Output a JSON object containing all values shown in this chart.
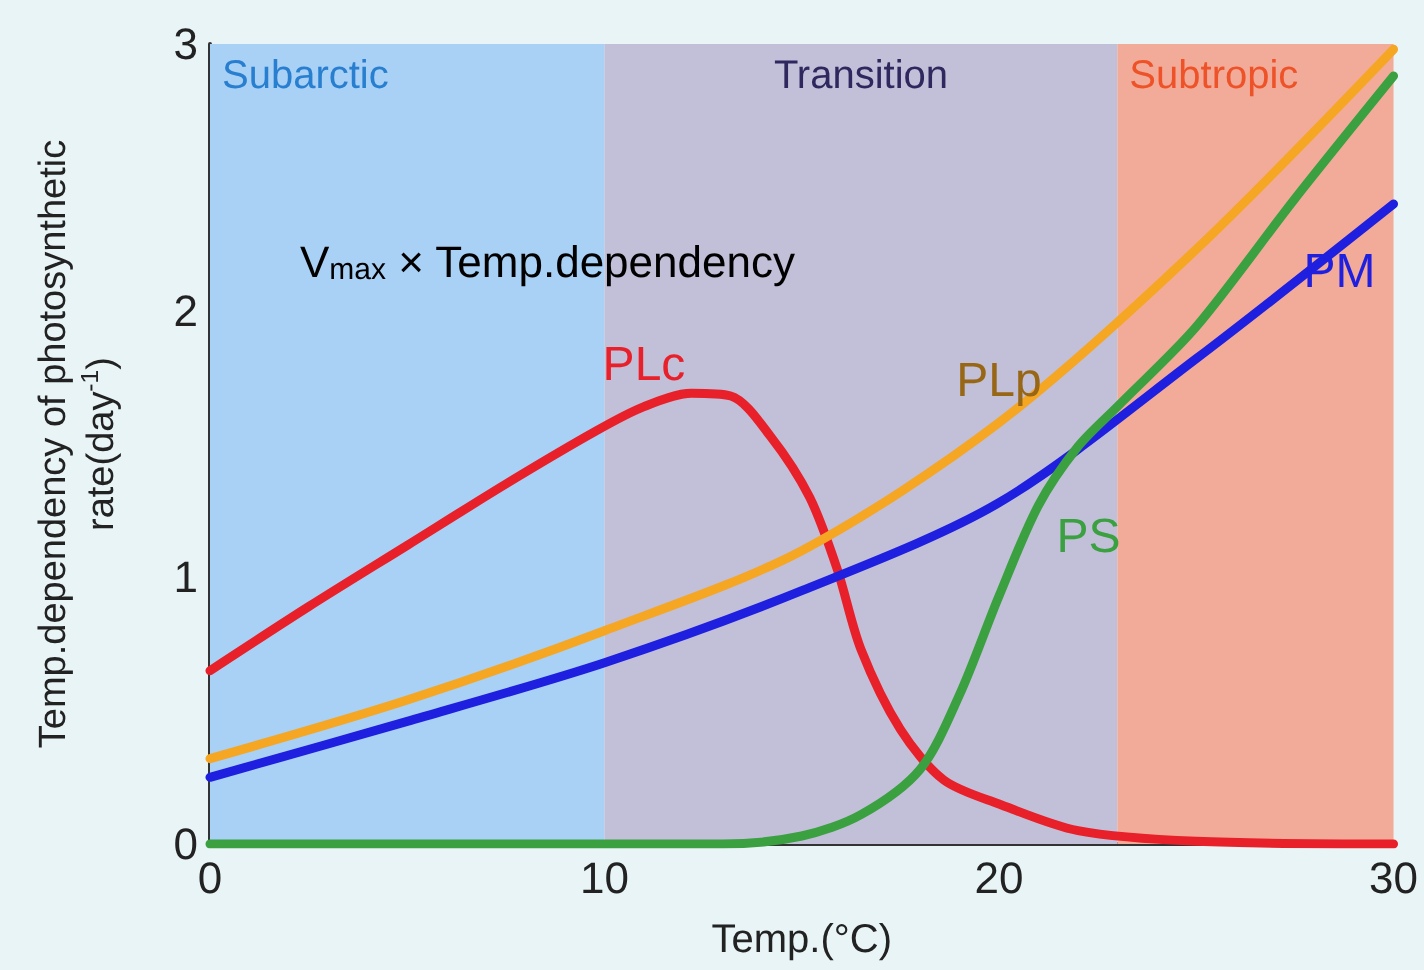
{
  "chart_data": {
    "type": "line",
    "xlabel": "Temp.(°C)",
    "ylabel": "Temp.dependency of photosynthetic rate(day$^{-1}$)",
    "xlim": [
      0,
      30
    ],
    "xticks": [
      0,
      10,
      20,
      30
    ],
    "ylim": [
      0,
      3
    ],
    "yticks": [
      0,
      1,
      2,
      3
    ],
    "grid": false,
    "legend": false,
    "marker": "none",
    "line_style": "solid",
    "annotations": [
      "V$_{max}$ × Temp.dependency"
    ],
    "bands": [
      {
        "axis": "x",
        "from": 0,
        "to": 10,
        "label": "Subarctic",
        "color": "#a9d0f5"
      },
      {
        "axis": "x",
        "from": 10,
        "to": 23,
        "label": "Transition",
        "color": "#c2bfd8"
      },
      {
        "axis": "x",
        "from": 23,
        "to": 30,
        "label": "Subtropic",
        "color": "#f2ab98"
      }
    ],
    "series": [
      {
        "name": "PLc",
        "color": "#e8202a",
        "x": [
          0,
          2.5,
          5,
          7.5,
          9.8,
          11,
          12.2,
          13.2,
          14.2,
          15.2,
          15.9,
          16.5,
          17.5,
          18.6,
          20,
          22,
          25,
          30
        ],
        "values": [
          0.65,
          0.89,
          1.12,
          1.35,
          1.55,
          1.64,
          1.69,
          1.68,
          1.53,
          1.3,
          1.03,
          0.73,
          0.43,
          0.24,
          0.15,
          0.05,
          0.01,
          0
        ]
      },
      {
        "name": "PLp",
        "color": "#f5a623",
        "x": [
          0,
          5,
          10,
          15,
          20,
          25,
          30
        ],
        "values": [
          0.32,
          0.54,
          0.8,
          1.1,
          1.58,
          2.23,
          2.98
        ]
      },
      {
        "name": "PM",
        "color": "#1f1fe0",
        "x": [
          0,
          5,
          10,
          15,
          20,
          25,
          30
        ],
        "values": [
          0.25,
          0.46,
          0.68,
          0.95,
          1.28,
          1.82,
          2.4
        ]
      },
      {
        "name": "PS",
        "color": "#3aa040",
        "x": [
          0,
          13,
          15,
          16.5,
          18,
          19,
          20,
          21,
          22,
          23,
          25,
          27.5,
          30
        ],
        "values": [
          0,
          0,
          0.03,
          0.11,
          0.28,
          0.56,
          0.93,
          1.27,
          1.49,
          1.64,
          1.94,
          2.42,
          2.88
        ]
      }
    ]
  }
}
